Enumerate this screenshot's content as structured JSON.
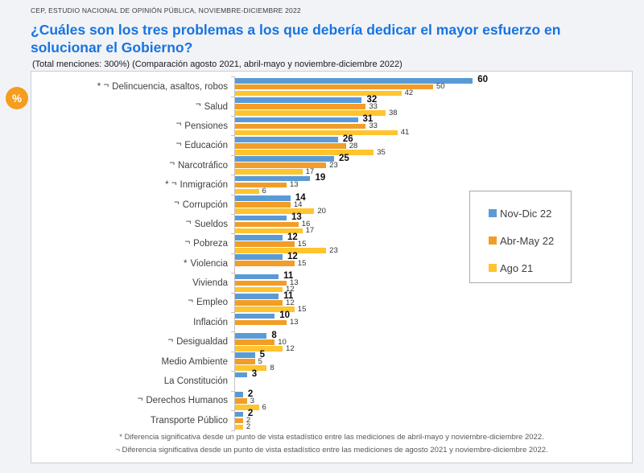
{
  "page": {
    "kicker": "CEP, ESTUDIO NACIONAL DE OPINIÓN PÚBLICA, NOVIEMBRE-DICIEMBRE 2022",
    "title": "¿Cuáles son los tres problemas a los que debería dedicar el mayor esfuerzo en solucionar el Gobierno?",
    "subtitle": "(Total menciones: 300%) (Comparación agosto 2021, abril-mayo y noviembre-diciembre 2022)",
    "percent_badge": "%",
    "title_color": "#1874E0",
    "badge_color": "#F59D1E"
  },
  "chart_data": {
    "type": "bar",
    "orientation": "horizontal",
    "xlim": [
      0,
      65
    ],
    "grid": false,
    "legend_position": "center-right",
    "categories": [
      "Delincuencia, asaltos, robos",
      "Salud",
      "Pensiones",
      "Educación",
      "Narcotráfico",
      "Inmigración",
      "Corrupción",
      "Sueldos",
      "Pobreza",
      "Violencia",
      "Vivienda",
      "Empleo",
      "Inflación",
      "Desigualdad",
      "Medio Ambiente",
      "La Constitución",
      "Derechos Humanos",
      "Transporte Público"
    ],
    "category_markers": [
      "* ¬",
      "¬",
      "¬",
      "¬",
      "¬",
      "* ¬",
      "¬",
      "¬",
      "¬",
      "*",
      "",
      "¬",
      "",
      "¬",
      "",
      "",
      "¬",
      ""
    ],
    "series": [
      {
        "name": "Nov-Dic 22",
        "color": "#5B9BD5",
        "values": [
          60,
          32,
          31,
          26,
          25,
          19,
          14,
          13,
          12,
          12,
          11,
          11,
          10,
          8,
          5,
          3,
          2,
          2
        ]
      },
      {
        "name": "Abr-May 22",
        "color": "#F29D27",
        "values": [
          50,
          33,
          33,
          28,
          23,
          13,
          14,
          16,
          15,
          15,
          13,
          12,
          13,
          10,
          5,
          null,
          3,
          2
        ]
      },
      {
        "name": "Ago 21",
        "color": "#FFC42E",
        "values": [
          42,
          38,
          41,
          35,
          17,
          6,
          20,
          17,
          23,
          null,
          12,
          15,
          null,
          12,
          8,
          null,
          6,
          2
        ]
      }
    ],
    "footnotes": [
      "* Diferencia significativa desde un punto de vista estadístico entre las mediciones de abril-mayo y noviembre-diciembre 2022.",
      "¬ Diferencia significativa desde un punto de vista estadístico entre las mediciones de agosto 2021 y noviembre-diciembre 2022."
    ]
  }
}
